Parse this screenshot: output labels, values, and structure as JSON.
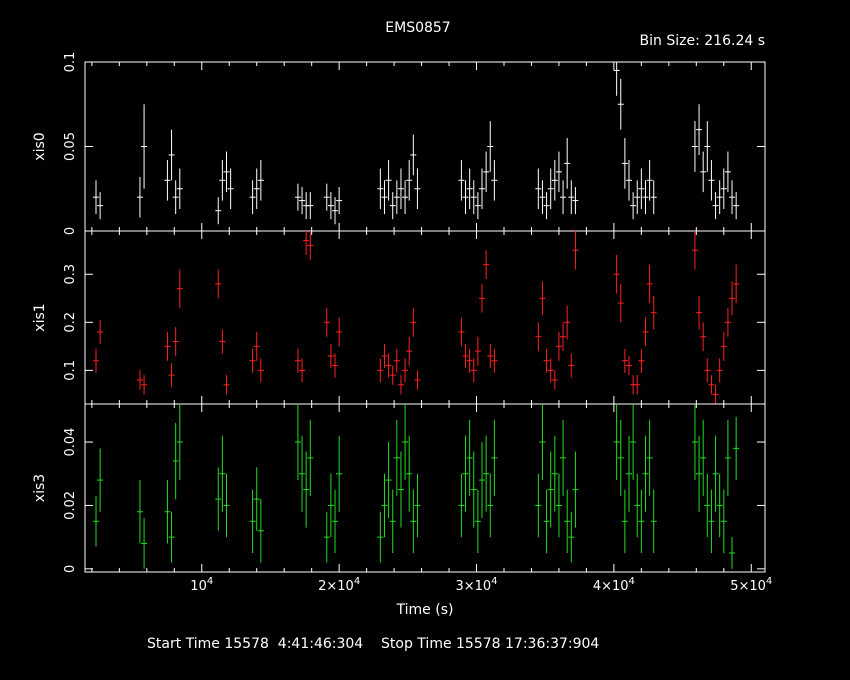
{
  "title": "EMS0857",
  "bin_size": "Bin Size: 216.24 s",
  "start_time": "Start Time 15578  4:41:46:304",
  "stop_time": "Stop Time 15578 17:36:37:904",
  "chart_data": {
    "type": "scatter",
    "xlabel": "Time (s)",
    "xlim": [
      1500,
      51000
    ],
    "x_ticks": [
      {
        "value": 10000,
        "label": "10",
        "exp": "4"
      },
      {
        "value": 20000,
        "label": "2×10",
        "exp": "4"
      },
      {
        "value": 30000,
        "label": "3×10",
        "exp": "4"
      },
      {
        "value": 40000,
        "label": "4×10",
        "exp": "4"
      },
      {
        "value": 50000,
        "label": "5×10",
        "exp": "4"
      }
    ],
    "panels": [
      {
        "name": "xis0",
        "color": "#ffffff",
        "ylim": [
          0,
          0.1
        ],
        "y_ticks": [
          0,
          0.05,
          0.1
        ],
        "y_tick_labels": [
          "0",
          "0.05",
          "0.1"
        ],
        "x": [
          2300,
          2600,
          5500,
          5800,
          7500,
          7800,
          8100,
          8400,
          11200,
          11500,
          11800,
          12100,
          13700,
          14000,
          14300,
          17000,
          17300,
          17600,
          17900,
          19100,
          19400,
          19700,
          20000,
          23000,
          23300,
          23600,
          23900,
          24200,
          24500,
          24800,
          25100,
          25400,
          25700,
          28900,
          29200,
          29500,
          29800,
          30100,
          30400,
          30700,
          31000,
          31300,
          34500,
          34800,
          35100,
          35400,
          35700,
          36000,
          36300,
          36600,
          36900,
          37200,
          40200,
          40500,
          40800,
          41100,
          41400,
          41700,
          42000,
          42300,
          42600,
          42900,
          45900,
          46200,
          46500,
          46800,
          47100,
          47400,
          47700,
          48000,
          48300,
          48600,
          48900
        ],
        "y": [
          0.02,
          0.015,
          0.02,
          0.05,
          0.03,
          0.045,
          0.02,
          0.025,
          0.012,
          0.03,
          0.035,
          0.025,
          0.02,
          0.025,
          0.03,
          0.02,
          0.018,
          0.015,
          0.015,
          0.02,
          0.015,
          0.012,
          0.018,
          0.025,
          0.02,
          0.03,
          0.015,
          0.02,
          0.025,
          0.02,
          0.03,
          0.045,
          0.025,
          0.03,
          0.02,
          0.025,
          0.02,
          0.015,
          0.025,
          0.035,
          0.05,
          0.03,
          0.025,
          0.02,
          0.015,
          0.025,
          0.03,
          0.035,
          0.02,
          0.04,
          0.02,
          0.018,
          0.095,
          0.075,
          0.04,
          0.03,
          0.015,
          0.02,
          0.025,
          0.02,
          0.03,
          0.02,
          0.05,
          0.06,
          0.035,
          0.05,
          0.03,
          0.015,
          0.02,
          0.025,
          0.035,
          0.02,
          0.015
        ],
        "err": [
          0.01,
          0.008,
          0.012,
          0.025,
          0.012,
          0.015,
          0.01,
          0.012,
          0.008,
          0.012,
          0.012,
          0.012,
          0.01,
          0.012,
          0.012,
          0.008,
          0.008,
          0.008,
          0.008,
          0.008,
          0.008,
          0.008,
          0.008,
          0.012,
          0.01,
          0.012,
          0.008,
          0.01,
          0.012,
          0.01,
          0.012,
          0.012,
          0.012,
          0.012,
          0.01,
          0.012,
          0.01,
          0.008,
          0.012,
          0.012,
          0.015,
          0.012,
          0.012,
          0.01,
          0.008,
          0.012,
          0.012,
          0.012,
          0.01,
          0.015,
          0.01,
          0.008,
          0.015,
          0.015,
          0.015,
          0.012,
          0.008,
          0.01,
          0.012,
          0.01,
          0.012,
          0.01,
          0.015,
          0.015,
          0.012,
          0.015,
          0.012,
          0.008,
          0.01,
          0.012,
          0.012,
          0.01,
          0.008
        ]
      },
      {
        "name": "xis1",
        "color": "#ff2020",
        "ylim": [
          0.03,
          0.39
        ],
        "y_ticks": [
          0.1,
          0.2,
          0.3
        ],
        "y_tick_labels": [
          "0.1",
          "0.2",
          "0.3"
        ],
        "x": [
          2300,
          2600,
          5500,
          5800,
          7500,
          7800,
          8100,
          8400,
          11200,
          11500,
          11800,
          13700,
          14000,
          14300,
          17000,
          17300,
          17600,
          17900,
          19100,
          19400,
          19700,
          20000,
          23000,
          23300,
          23600,
          23900,
          24200,
          24500,
          24800,
          25100,
          25400,
          25700,
          28900,
          29200,
          29500,
          29800,
          30100,
          30400,
          30700,
          31000,
          31300,
          34500,
          34800,
          35100,
          35400,
          35700,
          36000,
          36300,
          36600,
          36900,
          37200,
          40200,
          40500,
          40800,
          41100,
          41400,
          41700,
          42000,
          42300,
          42600,
          42900,
          45900,
          46200,
          46500,
          46800,
          47100,
          47400,
          47700,
          48000,
          48300,
          48600,
          48900
        ],
        "y": [
          0.12,
          0.18,
          0.08,
          0.07,
          0.15,
          0.09,
          0.16,
          0.27,
          0.28,
          0.16,
          0.07,
          0.12,
          0.15,
          0.1,
          0.12,
          0.1,
          0.37,
          0.36,
          0.2,
          0.13,
          0.11,
          0.18,
          0.1,
          0.13,
          0.11,
          0.09,
          0.12,
          0.07,
          0.1,
          0.14,
          0.2,
          0.08,
          0.18,
          0.13,
          0.12,
          0.1,
          0.14,
          0.25,
          0.32,
          0.13,
          0.12,
          0.17,
          0.25,
          0.12,
          0.1,
          0.08,
          0.15,
          0.17,
          0.2,
          0.11,
          0.35,
          0.3,
          0.24,
          0.12,
          0.11,
          0.07,
          0.07,
          0.12,
          0.18,
          0.28,
          0.22,
          0.35,
          0.22,
          0.17,
          0.1,
          0.07,
          0.05,
          0.1,
          0.15,
          0.2,
          0.25,
          0.28
        ],
        "err": [
          0.025,
          0.025,
          0.02,
          0.02,
          0.03,
          0.025,
          0.03,
          0.04,
          0.03,
          0.025,
          0.02,
          0.025,
          0.03,
          0.025,
          0.025,
          0.025,
          0.03,
          0.03,
          0.03,
          0.025,
          0.025,
          0.03,
          0.025,
          0.025,
          0.025,
          0.02,
          0.025,
          0.02,
          0.025,
          0.03,
          0.03,
          0.02,
          0.03,
          0.025,
          0.025,
          0.025,
          0.03,
          0.03,
          0.03,
          0.025,
          0.025,
          0.03,
          0.035,
          0.025,
          0.025,
          0.02,
          0.03,
          0.03,
          0.035,
          0.025,
          0.04,
          0.04,
          0.04,
          0.025,
          0.02,
          0.02,
          0.02,
          0.025,
          0.03,
          0.04,
          0.035,
          0.04,
          0.035,
          0.03,
          0.025,
          0.02,
          0.02,
          0.025,
          0.03,
          0.03,
          0.035,
          0.04
        ]
      },
      {
        "name": "xis3",
        "color": "#22dd22",
        "ylim": [
          -0.001,
          0.052
        ],
        "y_ticks": [
          0,
          0.02,
          0.04
        ],
        "y_tick_labels": [
          "0",
          "0.02",
          "0.04"
        ],
        "x": [
          2300,
          2600,
          5500,
          5800,
          7500,
          7800,
          8100,
          8400,
          11200,
          11500,
          11800,
          13700,
          14000,
          14300,
          17000,
          17300,
          17600,
          17900,
          19100,
          19400,
          19700,
          20000,
          23000,
          23300,
          23600,
          23900,
          24200,
          24500,
          24800,
          25100,
          25400,
          25700,
          28900,
          29200,
          29500,
          29800,
          30100,
          30400,
          30700,
          31000,
          31300,
          34500,
          34800,
          35100,
          35400,
          35700,
          36000,
          36300,
          36600,
          36900,
          37200,
          40200,
          40500,
          40800,
          41100,
          41400,
          41700,
          42000,
          42300,
          42600,
          42900,
          45900,
          46200,
          46500,
          46800,
          47100,
          47400,
          47700,
          48000,
          48300,
          48600,
          48900
        ],
        "y": [
          0.015,
          0.028,
          0.018,
          0.008,
          0.018,
          0.01,
          0.034,
          0.04,
          0.022,
          0.03,
          0.02,
          0.015,
          0.022,
          0.012,
          0.04,
          0.03,
          0.025,
          0.035,
          0.01,
          0.02,
          0.015,
          0.03,
          0.01,
          0.02,
          0.028,
          0.015,
          0.035,
          0.025,
          0.04,
          0.03,
          0.015,
          0.02,
          0.02,
          0.03,
          0.035,
          0.025,
          0.015,
          0.028,
          0.03,
          0.02,
          0.035,
          0.02,
          0.04,
          0.015,
          0.025,
          0.03,
          0.02,
          0.035,
          0.015,
          0.01,
          0.025,
          0.04,
          0.035,
          0.015,
          0.03,
          0.04,
          0.02,
          0.015,
          0.03,
          0.035,
          0.015,
          0.04,
          0.03,
          0.035,
          0.02,
          0.015,
          0.03,
          0.02,
          0.015,
          0.035,
          0.005,
          0.038
        ],
        "err": [
          0.008,
          0.01,
          0.01,
          0.008,
          0.01,
          0.008,
          0.012,
          0.012,
          0.01,
          0.012,
          0.01,
          0.01,
          0.01,
          0.01,
          0.012,
          0.012,
          0.012,
          0.012,
          0.008,
          0.01,
          0.01,
          0.012,
          0.008,
          0.01,
          0.012,
          0.01,
          0.012,
          0.012,
          0.012,
          0.012,
          0.01,
          0.01,
          0.01,
          0.012,
          0.012,
          0.012,
          0.01,
          0.012,
          0.012,
          0.01,
          0.012,
          0.01,
          0.012,
          0.01,
          0.012,
          0.012,
          0.01,
          0.012,
          0.01,
          0.008,
          0.012,
          0.012,
          0.012,
          0.01,
          0.012,
          0.012,
          0.01,
          0.01,
          0.012,
          0.012,
          0.01,
          0.012,
          0.012,
          0.012,
          0.01,
          0.01,
          0.012,
          0.01,
          0.01,
          0.012,
          0.005,
          0.01
        ]
      }
    ]
  }
}
